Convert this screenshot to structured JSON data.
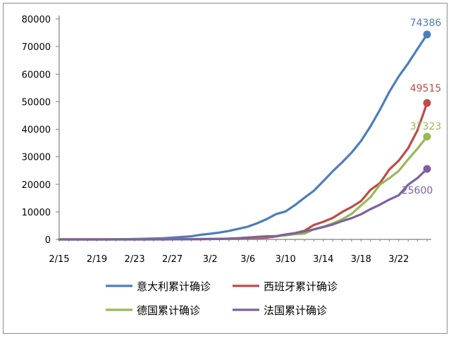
{
  "chart_data": {
    "type": "line",
    "x": [
      "2/15",
      "2/16",
      "2/17",
      "2/18",
      "2/19",
      "2/20",
      "2/21",
      "2/22",
      "2/23",
      "2/24",
      "2/25",
      "2/26",
      "2/27",
      "2/28",
      "2/29",
      "3/1",
      "3/2",
      "3/3",
      "3/4",
      "3/5",
      "3/6",
      "3/7",
      "3/8",
      "3/9",
      "3/10",
      "3/11",
      "3/12",
      "3/13",
      "3/14",
      "3/15",
      "3/16",
      "3/17",
      "3/18",
      "3/19",
      "3/20",
      "3/21",
      "3/22",
      "3/23",
      "3/24",
      "3/25"
    ],
    "tick_labels": [
      "2/15",
      "2/19",
      "2/23",
      "2/27",
      "3/2",
      "3/6",
      "3/10",
      "3/14",
      "3/18",
      "3/22"
    ],
    "ylim": [
      0,
      80000
    ],
    "yticks": [
      "0",
      "10000",
      "20000",
      "30000",
      "40000",
      "50000",
      "60000",
      "70000",
      "80000"
    ],
    "ytick_values": [
      0,
      10000,
      20000,
      30000,
      40000,
      50000,
      60000,
      70000,
      80000
    ],
    "series": [
      {
        "name": "意大利累计确诊",
        "color": "#4a7ebb",
        "values": [
          3,
          3,
          3,
          3,
          3,
          3,
          20,
          79,
          150,
          229,
          322,
          400,
          650,
          888,
          1128,
          1694,
          2036,
          2502,
          3089,
          3858,
          4636,
          5883,
          7375,
          9172,
          10149,
          12462,
          15113,
          17660,
          21157,
          24747,
          27980,
          31506,
          35713,
          41035,
          47021,
          53578,
          59138,
          63927,
          69176,
          74386
        ],
        "end_label": "74386"
      },
      {
        "name": "西班牙累计确诊",
        "color": "#be4b48",
        "values": [
          2,
          2,
          2,
          2,
          2,
          2,
          2,
          2,
          2,
          2,
          3,
          10,
          15,
          32,
          45,
          84,
          120,
          165,
          222,
          259,
          400,
          500,
          673,
          1073,
          1695,
          2277,
          3146,
          5232,
          6391,
          7798,
          9942,
          11748,
          13910,
          17963,
          20410,
          25374,
          28572,
          33089,
          39673,
          49515
        ],
        "end_label": "49515"
      },
      {
        "name": "德国累计确诊",
        "color": "#98b954",
        "values": [
          16,
          16,
          16,
          16,
          16,
          16,
          16,
          16,
          16,
          16,
          17,
          27,
          46,
          48,
          79,
          130,
          159,
          196,
          262,
          482,
          670,
          799,
          1040,
          1176,
          1457,
          1908,
          2078,
          3675,
          4585,
          5795,
          7272,
          9257,
          12327,
          15320,
          19848,
          22213,
          24873,
          29056,
          32986,
          37323
        ],
        "end_label": "37323"
      },
      {
        "name": "法国累计确诊",
        "color": "#7d60a0",
        "values": [
          12,
          12,
          12,
          12,
          12,
          12,
          12,
          12,
          12,
          12,
          14,
          18,
          38,
          57,
          100,
          130,
          191,
          204,
          285,
          377,
          653,
          949,
          1126,
          1209,
          1784,
          2284,
          2876,
          3661,
          4499,
          5423,
          6633,
          7730,
          9134,
          10995,
          12612,
          14459,
          16018,
          19856,
          22304,
          25600
        ],
        "end_label": "25600"
      }
    ],
    "legend_position": "bottom",
    "grid": false
  }
}
